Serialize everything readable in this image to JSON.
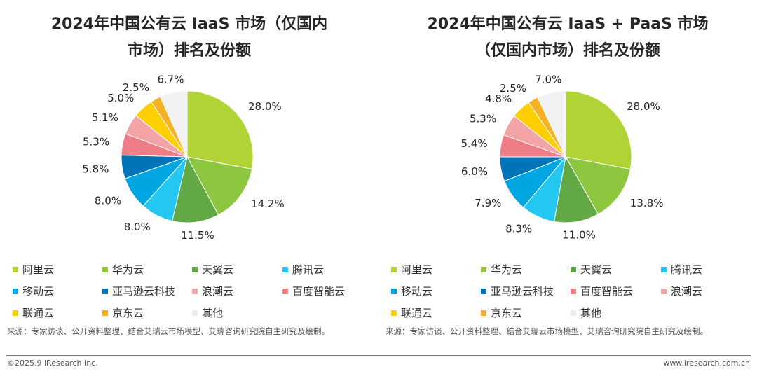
{
  "colors": [
    "#b0d335",
    "#8dc63f",
    "#62a844",
    "#23c7f0",
    "#00a6e1",
    "#0073b9",
    "#f4a3a6",
    "#ef7d87",
    "#fecf00",
    "#f7b127",
    "#f2f2f2"
  ],
  "legend_labels": [
    "阿里云",
    "华为云",
    "天翼云",
    "腾讯云",
    "移动云",
    "亚马逊云科技",
    "浪潮云",
    "百度智能云",
    "联通云",
    "京东云",
    "其他"
  ],
  "chart_data": [
    {
      "type": "pie",
      "title": "2024年中国公有云 IaaS 市场（仅国内市场）排名及份额",
      "title_lines": [
        "2024年中国公有云 IaaS 市场（仅国内",
        "市场）排名及份额"
      ],
      "categories": [
        "阿里云",
        "华为云",
        "天翼云",
        "腾讯云",
        "移动云",
        "亚马逊云科技",
        "百度智能云",
        "浪潮云",
        "联通云",
        "京东云",
        "其他"
      ],
      "values": [
        28.0,
        14.2,
        11.5,
        8.0,
        8.0,
        5.8,
        5.3,
        5.1,
        5.0,
        2.5,
        6.7
      ],
      "labels": [
        "28.0%",
        "14.2%",
        "11.5%",
        "8.0%",
        "8.0%",
        "5.8%",
        "5.3%",
        "5.1%",
        "5.0%",
        "2.5%",
        "6.7%"
      ],
      "color_index": [
        0,
        1,
        2,
        3,
        4,
        5,
        7,
        6,
        8,
        9,
        10
      ],
      "legend_order": [
        0,
        1,
        2,
        3,
        4,
        5,
        6,
        7,
        8,
        9,
        10
      ],
      "legend_placement": "bottom"
    },
    {
      "type": "pie",
      "title": "2024年中国公有云 IaaS + PaaS 市场（仅国内市场）排名及份额",
      "title_lines": [
        "2024年中国公有云 IaaS + PaaS 市场",
        "（仅国内市场）排名及份额"
      ],
      "categories": [
        "阿里云",
        "华为云",
        "天翼云",
        "腾讯云",
        "移动云",
        "亚马逊云科技",
        "百度智能云",
        "浪潮云",
        "联通云",
        "京东云",
        "其他"
      ],
      "values": [
        28.0,
        13.8,
        11.0,
        8.3,
        7.9,
        6.0,
        5.4,
        5.3,
        4.8,
        2.5,
        7.0
      ],
      "labels": [
        "28.0%",
        "13.8%",
        "11.0%",
        "8.3%",
        "7.9%",
        "6.0%",
        "5.4%",
        "5.3%",
        "4.8%",
        "2.5%",
        "7.0%"
      ],
      "color_index": [
        0,
        1,
        2,
        3,
        4,
        5,
        7,
        6,
        8,
        9,
        10
      ],
      "legend_order": [
        0,
        1,
        2,
        3,
        4,
        5,
        7,
        6,
        8,
        9,
        10
      ],
      "legend_placement": "bottom"
    }
  ],
  "source": "来源：专家访谈、公开资料整理、结合艾瑞云市场模型、艾瑞咨询研究院自主研究及绘制。",
  "footer": {
    "copyright": "©2025.9 iResearch Inc.",
    "website": "www.iresearch.com.cn"
  }
}
